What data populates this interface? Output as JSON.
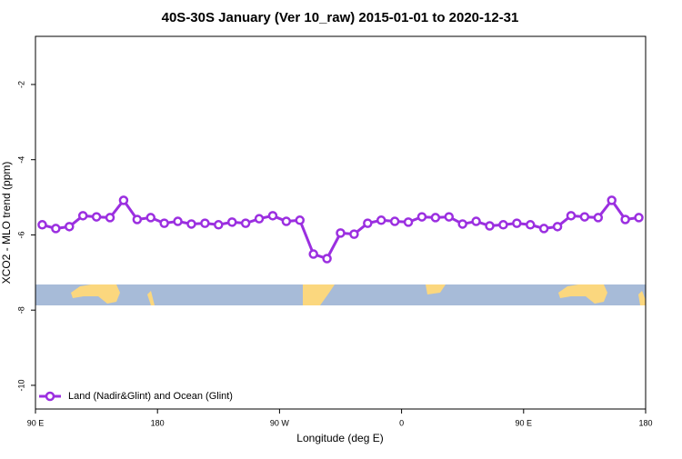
{
  "chart_data": {
    "type": "line",
    "title": "40S-30S January (Ver 10_raw)   2015-01-01 to 2020-12-31",
    "x_label": "Longitude (deg E)",
    "y_label": "XCO2 - MLO trend (ppm)",
    "x": [
      95,
      105,
      115,
      125,
      135,
      145,
      155,
      165,
      175,
      185,
      195,
      205,
      215,
      225,
      235,
      245,
      255,
      265,
      275,
      285,
      295,
      305,
      315,
      325,
      335,
      345,
      355,
      365,
      375,
      385,
      395,
      405,
      415,
      425,
      435,
      445,
      455,
      465,
      475,
      485,
      495,
      505,
      515,
      525,
      535
    ],
    "series": [
      {
        "name": "Land (Nadir&Glint) and Ocean (Glint)",
        "color": "#9b2fe0",
        "values": [
          -5.73,
          -5.83,
          -5.78,
          -5.49,
          -5.52,
          -5.54,
          -5.08,
          -5.59,
          -5.54,
          -5.69,
          -5.64,
          -5.71,
          -5.69,
          -5.73,
          -5.66,
          -5.69,
          -5.57,
          -5.49,
          -5.64,
          -5.61,
          -6.51,
          -6.63,
          -5.95,
          -5.98,
          -5.69,
          -5.61,
          -5.64,
          -5.66,
          -5.52,
          -5.54,
          -5.52,
          -5.71,
          -5.64,
          -5.76,
          -5.73,
          -5.69,
          -5.73,
          -5.83,
          -5.78,
          -5.49,
          -5.52,
          -5.54,
          -5.08,
          -5.59,
          -5.54
        ]
      }
    ],
    "xlim": [
      90,
      540
    ],
    "xticks": [
      {
        "value": 90,
        "label": "90 E"
      },
      {
        "value": 180,
        "label": "180"
      },
      {
        "value": 270,
        "label": "90 W"
      },
      {
        "value": 360,
        "label": "0"
      },
      {
        "value": 450,
        "label": "90 E"
      },
      {
        "value": 540,
        "label": "180"
      }
    ],
    "ylim": [
      -10.63,
      -0.72
    ],
    "yticks": [
      -2,
      -4,
      -6,
      -8,
      -10
    ],
    "legend": "bottom-left"
  }
}
